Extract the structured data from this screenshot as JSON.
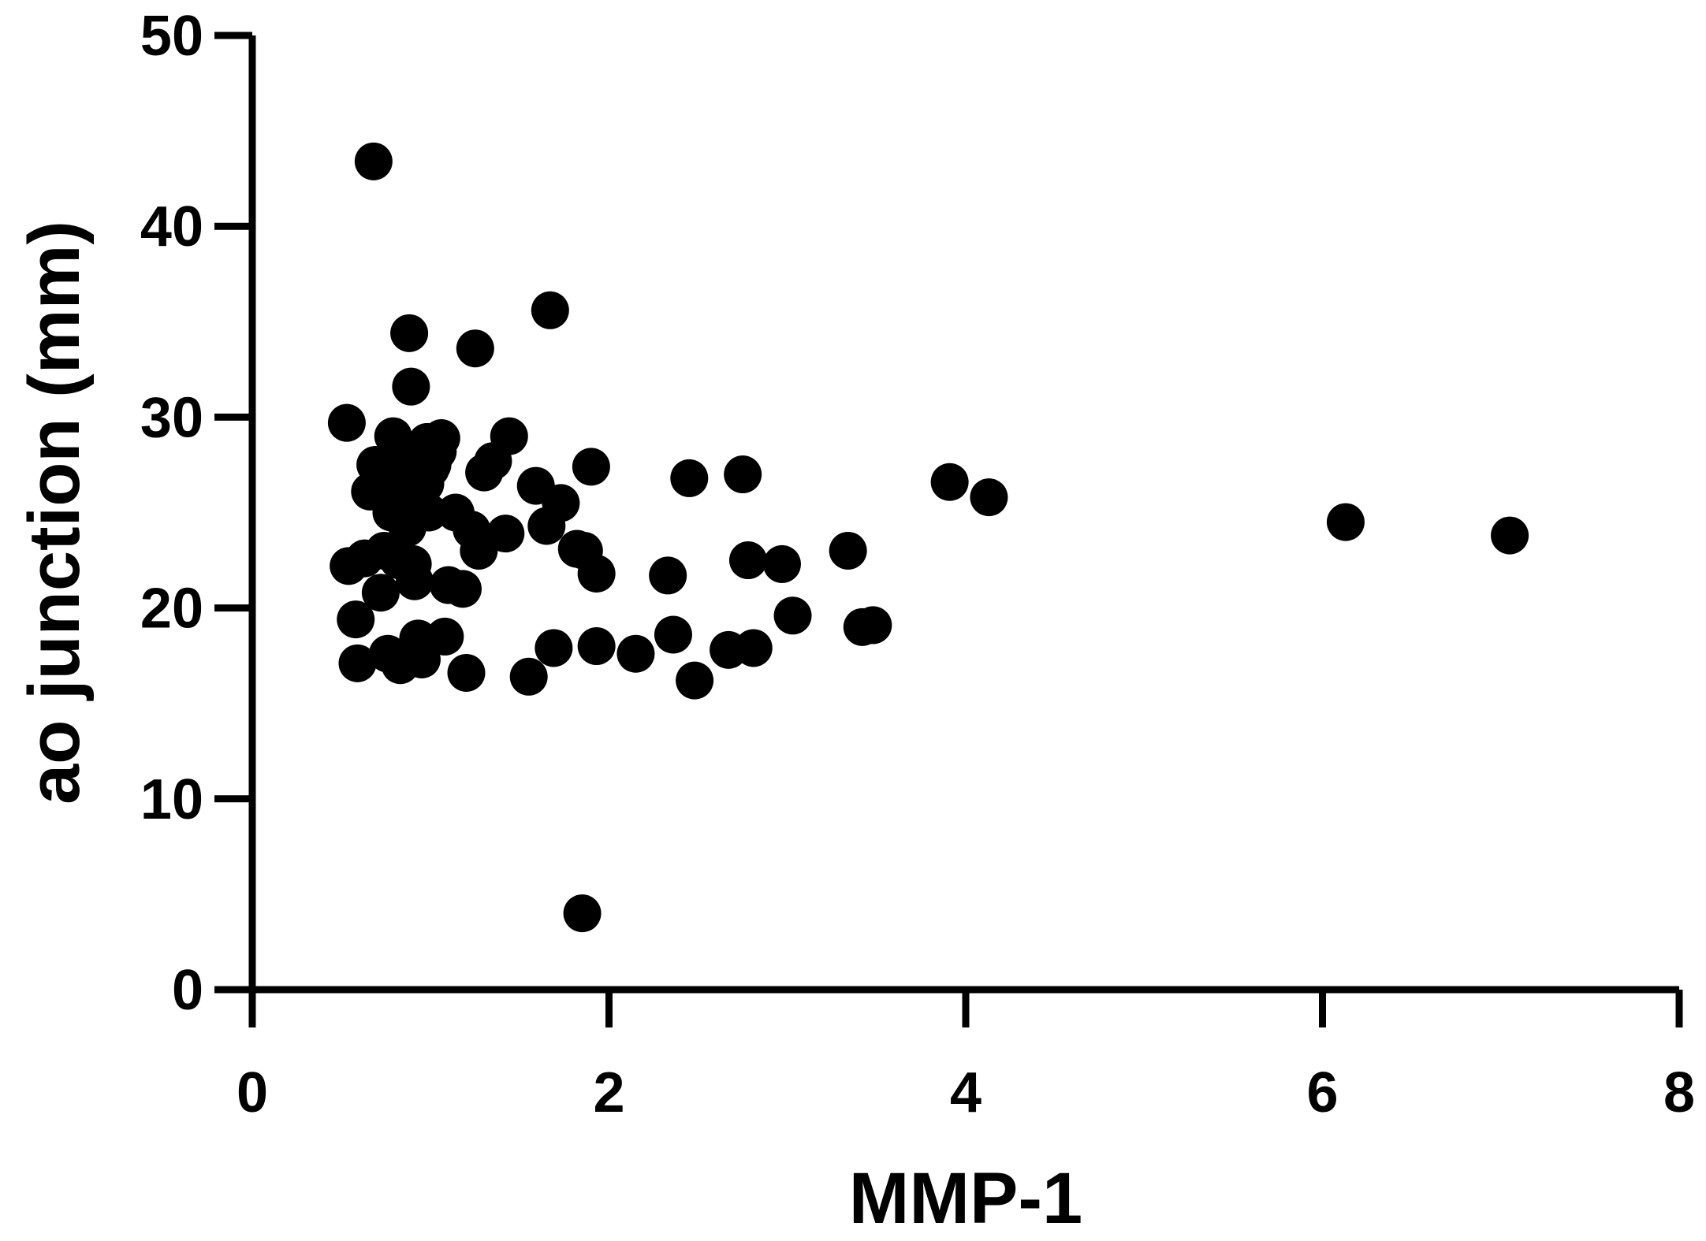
{
  "chart_data": {
    "type": "scatter",
    "title": "",
    "xlabel": "MMP-1",
    "ylabel": "ao junction (mm)",
    "xlim": [
      0,
      8
    ],
    "ylim": [
      0,
      50
    ],
    "xticks": [
      0,
      2,
      4,
      6,
      8
    ],
    "yticks": [
      0,
      10,
      20,
      30,
      40,
      50
    ],
    "xtick_labels": [
      "0",
      "2",
      "4",
      "6",
      "8"
    ],
    "ytick_labels": [
      "0",
      "10",
      "20",
      "30",
      "40",
      "50"
    ],
    "grid": false,
    "color": "#000000",
    "series": [
      {
        "x": [
          0.68,
          0.53,
          0.54,
          0.58,
          0.59,
          0.63,
          0.66,
          0.69,
          0.72,
          0.74,
          0.76,
          0.78,
          0.79,
          0.8,
          0.82,
          0.83,
          0.84,
          0.86,
          0.87,
          0.88,
          0.89,
          0.9,
          0.91,
          0.92,
          0.93,
          0.94,
          0.95,
          0.96,
          0.97,
          0.98,
          0.99,
          1.0,
          1.01,
          1.02,
          1.04,
          1.06,
          1.08,
          1.1,
          1.14,
          1.18,
          1.2,
          1.23,
          1.25,
          1.27,
          1.3,
          1.35,
          1.42,
          1.44,
          1.55,
          1.59,
          1.65,
          1.67,
          1.69,
          1.73,
          1.82,
          1.85,
          1.86,
          1.9,
          1.93,
          1.93,
          2.15,
          2.33,
          2.36,
          2.45,
          2.48,
          2.67,
          2.75,
          2.78,
          2.81,
          2.97,
          3.03,
          3.34,
          3.42,
          3.48,
          3.91,
          4.13,
          6.13,
          7.05
        ],
        "y": [
          43.4,
          29.7,
          22.2,
          19.4,
          17.1,
          22.6,
          26.1,
          27.5,
          20.8,
          23.0,
          17.6,
          25.0,
          29.0,
          26.8,
          22.5,
          17.0,
          28.3,
          27.2,
          24.2,
          34.4,
          31.6,
          22.3,
          21.4,
          26.0,
          18.4,
          27.8,
          17.3,
          28.0,
          26.5,
          28.7,
          25.0,
          27.3,
          27.5,
          27.9,
          28.2,
          28.9,
          18.5,
          21.2,
          25.0,
          21.0,
          16.6,
          24.1,
          33.6,
          23.0,
          27.1,
          27.7,
          23.9,
          29.0,
          16.4,
          26.4,
          24.3,
          35.6,
          17.9,
          25.5,
          23.1,
          4.0,
          23.0,
          27.4,
          18.0,
          21.8,
          17.6,
          21.7,
          18.6,
          26.8,
          16.2,
          17.8,
          27.0,
          22.5,
          17.9,
          22.3,
          19.6,
          23.0,
          19.0,
          19.1,
          26.6,
          25.8,
          24.5,
          23.8
        ]
      }
    ]
  }
}
